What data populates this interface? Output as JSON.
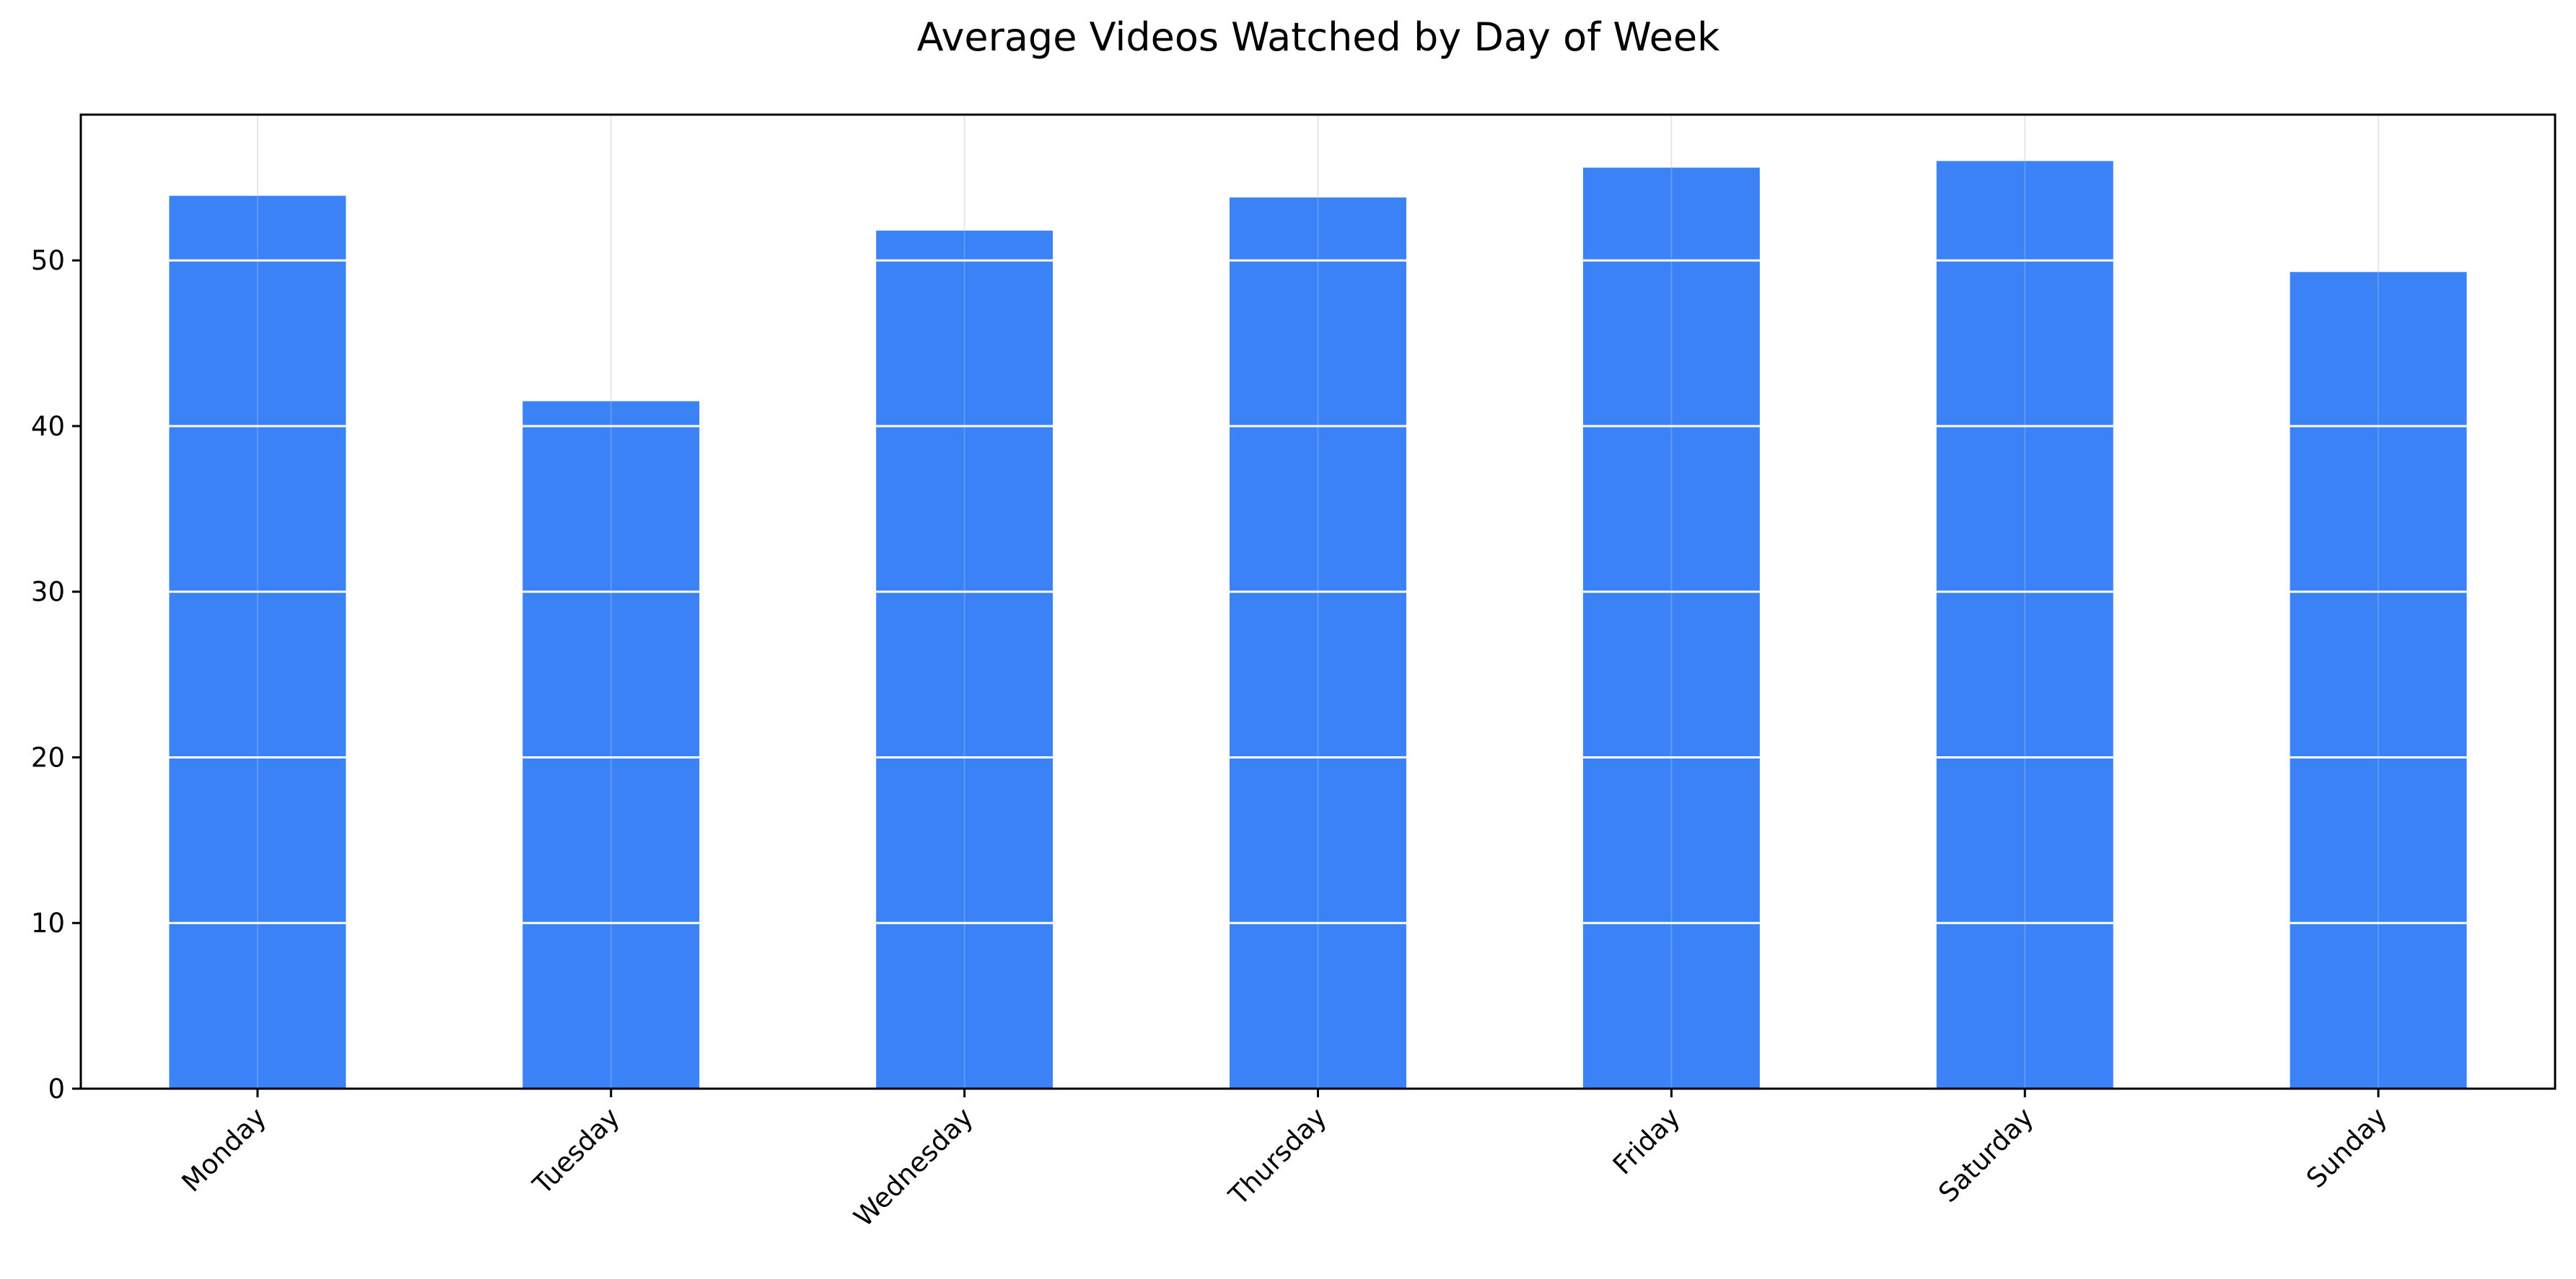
{
  "chart_data": {
    "type": "bar",
    "title": "Average Videos Watched by Day of Week",
    "xlabel": "",
    "ylabel": "",
    "categories": [
      "Monday",
      "Tuesday",
      "Wednesday",
      "Thursday",
      "Friday",
      "Saturday",
      "Sunday"
    ],
    "values": [
      53.9,
      41.5,
      51.8,
      53.8,
      55.6,
      56.0,
      49.3
    ],
    "ylim": [
      0,
      58.8
    ],
    "yticks": [
      0,
      10,
      20,
      30,
      40,
      50
    ],
    "grid": true,
    "bar_color": "#3b82f6",
    "grid_color": "#e6e6e6",
    "bar_grid_color": "#ffffff",
    "axis_color": "#000000"
  }
}
